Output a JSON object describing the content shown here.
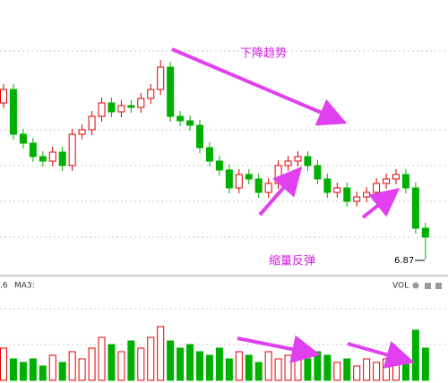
{
  "chart_data": {
    "type": "candlestick",
    "annotations": [
      "下降趋势",
      "缩量反弹",
      "6.87"
    ],
    "volume_labels": [
      ".6",
      "MA3:",
      "VOL"
    ],
    "up_color": "#e00000",
    "down_color": "#00b000",
    "ylim": [
      6.6,
      9.5
    ],
    "open": [
      8.62,
      8.77,
      8.27,
      8.17,
      8.02,
      7.97,
      8.07,
      7.92,
      8.27,
      8.32,
      8.47,
      8.62,
      8.52,
      8.59,
      8.57,
      8.67,
      8.77,
      9.02,
      8.47,
      8.42,
      8.37,
      8.12,
      7.97,
      7.87,
      7.67,
      7.82,
      7.77,
      7.62,
      7.72,
      7.92,
      7.97,
      8.02,
      7.92,
      7.77,
      7.62,
      7.67,
      7.52,
      7.57,
      7.62,
      7.72,
      7.77,
      7.82,
      7.67,
      7.22
    ],
    "high": [
      8.83,
      8.83,
      8.33,
      8.23,
      8.08,
      8.13,
      8.13,
      8.33,
      8.38,
      8.53,
      8.68,
      8.68,
      8.65,
      8.65,
      8.73,
      8.83,
      9.1,
      9.08,
      8.53,
      8.48,
      8.43,
      8.18,
      8.03,
      7.93,
      7.88,
      7.88,
      7.83,
      7.78,
      7.98,
      8.03,
      8.08,
      8.08,
      7.98,
      7.83,
      7.73,
      7.73,
      7.63,
      7.68,
      7.78,
      7.83,
      7.88,
      7.88,
      7.73,
      7.28
    ],
    "low": [
      8.56,
      8.21,
      8.11,
      7.96,
      7.91,
      7.91,
      7.86,
      7.86,
      8.21,
      8.26,
      8.41,
      8.46,
      8.46,
      8.51,
      8.51,
      8.61,
      8.71,
      8.41,
      8.36,
      8.31,
      8.06,
      7.91,
      7.81,
      7.61,
      7.61,
      7.71,
      7.56,
      7.56,
      7.66,
      7.86,
      7.91,
      7.86,
      7.71,
      7.56,
      7.56,
      7.46,
      7.46,
      7.51,
      7.56,
      7.66,
      7.71,
      7.61,
      7.16,
      6.87
    ],
    "close": [
      8.77,
      8.27,
      8.17,
      8.02,
      7.97,
      8.07,
      7.92,
      8.27,
      8.32,
      8.47,
      8.62,
      8.52,
      8.59,
      8.57,
      8.67,
      8.77,
      9.02,
      8.47,
      8.42,
      8.37,
      8.12,
      7.97,
      7.87,
      7.67,
      7.82,
      7.77,
      7.62,
      7.72,
      7.92,
      7.97,
      8.02,
      7.92,
      7.77,
      7.62,
      7.67,
      7.52,
      7.57,
      7.62,
      7.72,
      7.77,
      7.82,
      7.67,
      7.22,
      7.12
    ],
    "volume": [
      45,
      30,
      25,
      30,
      20,
      35,
      25,
      40,
      30,
      45,
      60,
      50,
      40,
      55,
      45,
      60,
      75,
      55,
      45,
      50,
      40,
      35,
      45,
      30,
      40,
      35,
      25,
      40,
      30,
      35,
      40,
      30,
      40,
      35,
      25,
      30,
      20,
      30,
      25,
      30,
      40,
      30,
      70,
      45
    ],
    "volume_ylim": [
      0,
      100
    ]
  }
}
